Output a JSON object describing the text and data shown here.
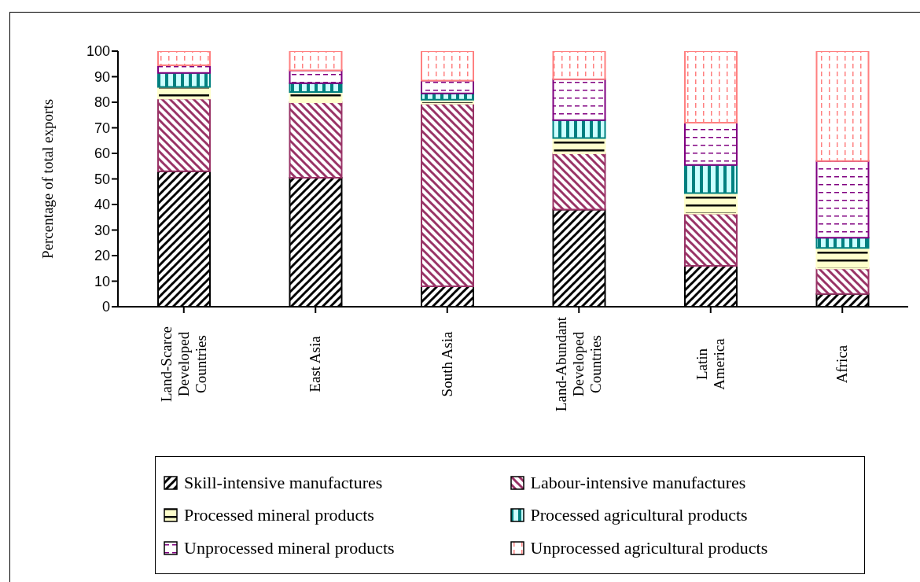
{
  "chart_data": {
    "type": "bar",
    "stacked": true,
    "ylabel": "Percentage of total exports",
    "categories": [
      "Land-Scarce Developed Countries",
      "East Asia",
      "South Asia",
      "Land-Abundant Developed Countries",
      "Latin America",
      "Africa"
    ],
    "series": [
      {
        "name": "Skill-intensive manufactures",
        "color": "#000000",
        "values": [
          53,
          50.5,
          8,
          38,
          16,
          5
        ]
      },
      {
        "name": "Labour-intensive manufactures",
        "color": "#993366",
        "values": [
          28.5,
          29.5,
          71.5,
          22,
          20.5,
          10
        ]
      },
      {
        "name": "Processed mineral products",
        "color": "#ffffcc",
        "values": [
          4.5,
          4,
          1.5,
          6,
          8,
          8
        ]
      },
      {
        "name": "Processed agricultural products",
        "color": "#008080",
        "values": [
          5.5,
          3.5,
          2.5,
          7,
          11,
          4
        ]
      },
      {
        "name": "Unprocessed mineral products",
        "color": "#800080",
        "values": [
          3,
          5,
          5,
          16,
          16.5,
          30
        ]
      },
      {
        "name": "Unprocessed agricultural products",
        "color": "#ff8080",
        "values": [
          5.5,
          7.5,
          11.5,
          11,
          28,
          43
        ]
      }
    ],
    "ylim": [
      0,
      100
    ],
    "yticks": [
      0,
      10,
      20,
      30,
      40,
      50,
      60,
      70,
      80,
      90,
      100
    ],
    "grid": false,
    "legend": "bottom"
  }
}
